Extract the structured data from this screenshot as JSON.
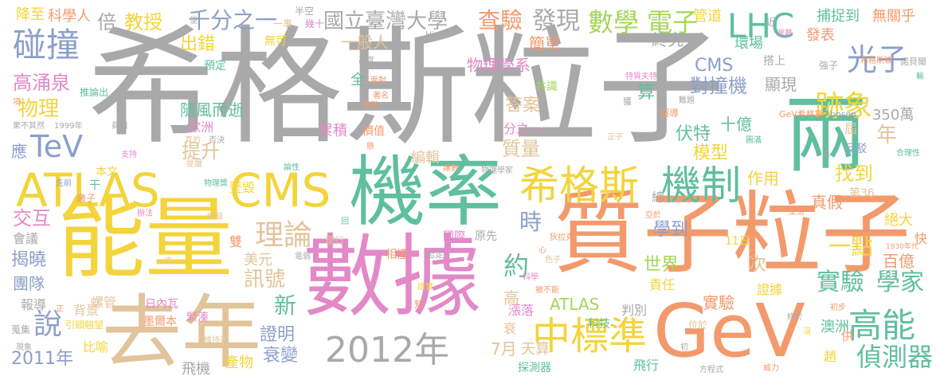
{
  "palette": {
    "gray": "#a9a9a9",
    "yellow": "#f3d43a",
    "orange": "#f39a6c",
    "pink": "#e388c8",
    "teal": "#5fbf9f",
    "blue": "#8b9fcb",
    "green": "#a5d65a",
    "tan": "#e2c49a"
  },
  "words": [
    {
      "text": "希格斯粒子",
      "color": "gray"
    },
    {
      "text": "數據",
      "color": "pink"
    },
    {
      "text": "能量",
      "color": "yellow"
    },
    {
      "text": "質子粒子",
      "color": "orange"
    },
    {
      "text": "機率",
      "color": "teal"
    },
    {
      "text": "去年",
      "color": "tan"
    },
    {
      "text": "兩",
      "color": "teal"
    },
    {
      "text": "GeV",
      "color": "orange"
    },
    {
      "text": "ATLAS",
      "color": "yellow"
    },
    {
      "text": "CMS",
      "color": "yellow"
    },
    {
      "text": "希格斯",
      "color": "yellow"
    },
    {
      "text": "機制",
      "color": "teal"
    },
    {
      "text": "2012年",
      "color": "gray"
    },
    {
      "text": "碰撞",
      "color": "blue"
    },
    {
      "text": "中標準",
      "color": "yellow"
    },
    {
      "text": "數學",
      "color": "green"
    },
    {
      "text": "電子",
      "color": "green"
    },
    {
      "text": "LHC",
      "color": "teal"
    },
    {
      "text": "光子",
      "color": "blue"
    },
    {
      "text": "跡象",
      "color": "yellow"
    },
    {
      "text": "高能",
      "color": "teal"
    },
    {
      "text": "理論",
      "color": "tan"
    },
    {
      "text": "TeV",
      "color": "blue"
    },
    {
      "text": "實驗",
      "color": "teal"
    },
    {
      "text": "學家",
      "color": "teal"
    },
    {
      "text": "偵測器",
      "color": "teal"
    },
    {
      "text": "查驗",
      "color": "orange"
    },
    {
      "text": "發現",
      "color": "gray"
    },
    {
      "text": "國立臺灣大學",
      "color": "gray"
    },
    {
      "text": "千分之一",
      "color": "blue"
    },
    {
      "text": "教授",
      "color": "yellow"
    },
    {
      "text": "倍",
      "color": "gray"
    },
    {
      "text": "科學人",
      "color": "orange"
    },
    {
      "text": "降至",
      "color": "yellow"
    },
    {
      "text": "半空",
      "color": "gray"
    },
    {
      "text": "一事",
      "color": "tan"
    },
    {
      "text": "幾十",
      "color": "pink"
    },
    {
      "text": "管道",
      "color": "yellow"
    },
    {
      "text": "捕捉到",
      "color": "teal"
    },
    {
      "text": "無關乎",
      "color": "orange"
    },
    {
      "text": "發表",
      "color": "orange"
    },
    {
      "text": "近",
      "color": "gray"
    },
    {
      "text": "遲暮",
      "color": "pink"
    },
    {
      "text": "希格斯玻",
      "color": "orange"
    },
    {
      "text": "強子",
      "color": "gray"
    },
    {
      "text": "諾貝爾",
      "color": "gray"
    },
    {
      "text": "輸",
      "color": "teal"
    },
    {
      "text": "高涌泉",
      "color": "pink"
    },
    {
      "text": "物理",
      "color": "yellow"
    },
    {
      "text": "出錯",
      "color": "yellow"
    },
    {
      "text": "無可",
      "color": "yellow"
    },
    {
      "text": "一般人",
      "color": "tan"
    },
    {
      "text": "Higgs",
      "color": "gray"
    },
    {
      "text": "簡單",
      "color": "orange"
    },
    {
      "text": "終究",
      "color": "gray"
    },
    {
      "text": "環場",
      "color": "teal"
    },
    {
      "text": "物理學系",
      "color": "pink"
    },
    {
      "text": "CMS",
      "color": "blue"
    },
    {
      "text": "搭上",
      "color": "gray"
    },
    {
      "text": "對撞機",
      "color": "blue"
    },
    {
      "text": "顯現",
      "color": "gray"
    },
    {
      "text": "答案",
      "color": "tan"
    },
    {
      "text": "算",
      "color": "teal"
    },
    {
      "text": "共識",
      "color": "green"
    },
    {
      "text": "特質夫特",
      "color": "pink"
    },
    {
      "text": "全",
      "color": "teal"
    },
    {
      "text": "面對",
      "color": "orange"
    },
    {
      "text": "高度",
      "color": "gray"
    },
    {
      "text": "預定",
      "color": "teal"
    },
    {
      "text": "隨風而逝",
      "color": "teal"
    },
    {
      "text": "歐洲",
      "color": "pink"
    },
    {
      "text": "累積",
      "color": "pink"
    },
    {
      "text": "價值",
      "color": "orange"
    },
    {
      "text": "質量",
      "color": "tan"
    },
    {
      "text": "分之一",
      "color": "pink"
    },
    {
      "text": "伏特",
      "color": "teal"
    },
    {
      "text": "十億",
      "color": "teal"
    },
    {
      "text": "模型",
      "color": "yellow"
    },
    {
      "text": "年",
      "color": "tan"
    },
    {
      "text": "屆",
      "color": "tan"
    },
    {
      "text": "350萬",
      "color": "gray"
    },
    {
      "text": "提升",
      "color": "tan"
    },
    {
      "text": "應",
      "color": "blue"
    },
    {
      "text": "編輯",
      "color": "tan"
    },
    {
      "text": "找到",
      "color": "yellow"
    },
    {
      "text": "作用",
      "color": "yellow"
    },
    {
      "text": "真假",
      "color": "orange"
    },
    {
      "text": "墜毀",
      "color": "yellow"
    },
    {
      "text": "時",
      "color": "blue"
    },
    {
      "text": "學到",
      "color": "blue"
    },
    {
      "text": "世界",
      "color": "green"
    },
    {
      "text": "約",
      "color": "teal"
    },
    {
      "text": "絕大",
      "color": "yellow"
    },
    {
      "text": "一點",
      "color": "yellow"
    },
    {
      "text": "百億",
      "color": "orange"
    },
    {
      "text": "交互",
      "color": "pink"
    },
    {
      "text": "會議",
      "color": "gray"
    },
    {
      "text": "揭曉",
      "color": "blue"
    },
    {
      "text": "團隊",
      "color": "blue"
    },
    {
      "text": "訊號",
      "color": "tan"
    },
    {
      "text": "美元",
      "color": "tan"
    },
    {
      "text": "新",
      "color": "teal"
    },
    {
      "text": "說",
      "color": "blue"
    },
    {
      "text": "證明",
      "color": "blue"
    },
    {
      "text": "衰變",
      "color": "blue"
    },
    {
      "text": "7月",
      "color": "tan"
    },
    {
      "text": "天算",
      "color": "tan"
    },
    {
      "text": "2011年",
      "color": "blue"
    },
    {
      "text": "飛機",
      "color": "gray"
    },
    {
      "text": "產物",
      "color": "yellow"
    },
    {
      "text": "探測器",
      "color": "teal"
    },
    {
      "text": "飛行",
      "color": "teal"
    },
    {
      "text": "澳洲",
      "color": "teal"
    },
    {
      "text": "責任",
      "color": "yellow"
    },
    {
      "text": "判別",
      "color": "gray"
    },
    {
      "text": "證據",
      "color": "yellow"
    },
    {
      "text": "日內瓦",
      "color": "pink"
    },
    {
      "text": "墨爾本",
      "color": "orange"
    },
    {
      "text": "螺管",
      "color": "tan"
    },
    {
      "text": "背景",
      "color": "tan"
    },
    {
      "text": "報導",
      "color": "gray"
    },
    {
      "text": "比喻",
      "color": "yellow"
    },
    {
      "text": "ATLAS",
      "color": "green"
    },
    {
      "text": "高",
      "color": "tan"
    },
    {
      "text": "次",
      "color": "tan"
    },
    {
      "text": "相撞",
      "color": "orange"
    },
    {
      "text": "國際",
      "color": "pink"
    },
    {
      "text": "原先",
      "color": "gray"
    },
    {
      "text": "現行",
      "color": "tan"
    },
    {
      "text": "雙",
      "color": "orange"
    },
    {
      "text": "緊湊",
      "color": "pink"
    },
    {
      "text": "漲落",
      "color": "pink"
    },
    {
      "text": "衰",
      "color": "tan"
    },
    {
      "text": "科技",
      "color": "teal"
    },
    {
      "text": "實驗",
      "color": "orange"
    },
    {
      "text": "第36",
      "color": "tan"
    },
    {
      "text": "反駁",
      "color": "blue"
    },
    {
      "text": "合理性",
      "color": "teal"
    },
    {
      "text": "快",
      "color": "orange"
    },
    {
      "text": "1930年代",
      "color": "orange"
    },
    {
      "text": "11日",
      "color": "yellow"
    },
    {
      "text": "本文",
      "color": "yellow"
    },
    {
      "text": "總",
      "color": "gray"
    },
    {
      "text": "供",
      "color": "orange"
    },
    {
      "text": "趙",
      "color": "yellow"
    },
    {
      "text": "方程式",
      "color": "gray"
    },
    {
      "text": "威力",
      "color": "orange"
    },
    {
      "text": "初",
      "color": "gray"
    },
    {
      "text": "位於",
      "color": "tan"
    },
    {
      "text": "超導",
      "color": "orange"
    },
    {
      "text": "圖滿",
      "color": "teal"
    },
    {
      "text": "正子",
      "color": "tan"
    },
    {
      "text": "獲",
      "color": "gray"
    },
    {
      "text": "難題",
      "color": "gray"
    },
    {
      "text": "GeV希格斯",
      "color": "orange"
    },
    {
      "text": "boson",
      "color": "blue"
    },
    {
      "text": "搞",
      "color": "gray"
    },
    {
      "text": "堅信",
      "color": "orange"
    },
    {
      "text": "亞於",
      "color": "orange"
    },
    {
      "text": "狄拉克",
      "color": "orange"
    },
    {
      "text": "心",
      "color": "orange"
    },
    {
      "text": "色子",
      "color": "tan"
    },
    {
      "text": "認定",
      "color": "gray"
    },
    {
      "text": "科學",
      "color": "pink"
    },
    {
      "text": "被不能",
      "color": "orange"
    },
    {
      "text": "證實",
      "color": "yellow"
    },
    {
      "text": "知",
      "color": "orange"
    },
    {
      "text": "電弱",
      "color": "gray"
    },
    {
      "text": "一流",
      "color": "tan"
    },
    {
      "text": "辦法",
      "color": "pink"
    },
    {
      "text": "經驗",
      "color": "tan"
    },
    {
      "text": "回",
      "color": "teal"
    },
    {
      "text": "讓數",
      "color": "orange"
    },
    {
      "text": "物理學家",
      "color": "gray"
    },
    {
      "text": "論性",
      "color": "teal"
    },
    {
      "text": "物理獎",
      "color": "teal"
    },
    {
      "text": "先前",
      "color": "blue"
    },
    {
      "text": "干",
      "color": "teal"
    },
    {
      "text": "繳子",
      "color": "orange"
    },
    {
      "text": "支持",
      "color": "pink"
    },
    {
      "text": "提醒",
      "color": "tan"
    },
    {
      "text": "真的",
      "color": "tan"
    },
    {
      "text": "否決",
      "color": "gray"
    },
    {
      "text": "推論出",
      "color": "teal"
    },
    {
      "text": "成就",
      "color": "orange"
    },
    {
      "text": "著名",
      "color": "orange"
    },
    {
      "text": "懸",
      "color": "orange"
    },
    {
      "text": "員相",
      "color": "gray"
    },
    {
      "text": "項",
      "color": "orange"
    },
    {
      "text": "果不其然",
      "color": "gray"
    },
    {
      "text": "1999年",
      "color": "gray"
    },
    {
      "text": "引頸翹望",
      "color": "yellow"
    },
    {
      "text": "維持著",
      "color": "tan"
    },
    {
      "text": "現象",
      "color": "gray"
    },
    {
      "text": "蒐集",
      "color": "gray"
    },
    {
      "text": "正",
      "color": "orange"
    },
    {
      "text": "終於",
      "color": "gray"
    },
    {
      "text": "沒",
      "color": "yellow"
    },
    {
      "text": "初步",
      "color": "orange"
    },
    {
      "text": "便",
      "color": "gray"
    }
  ]
}
